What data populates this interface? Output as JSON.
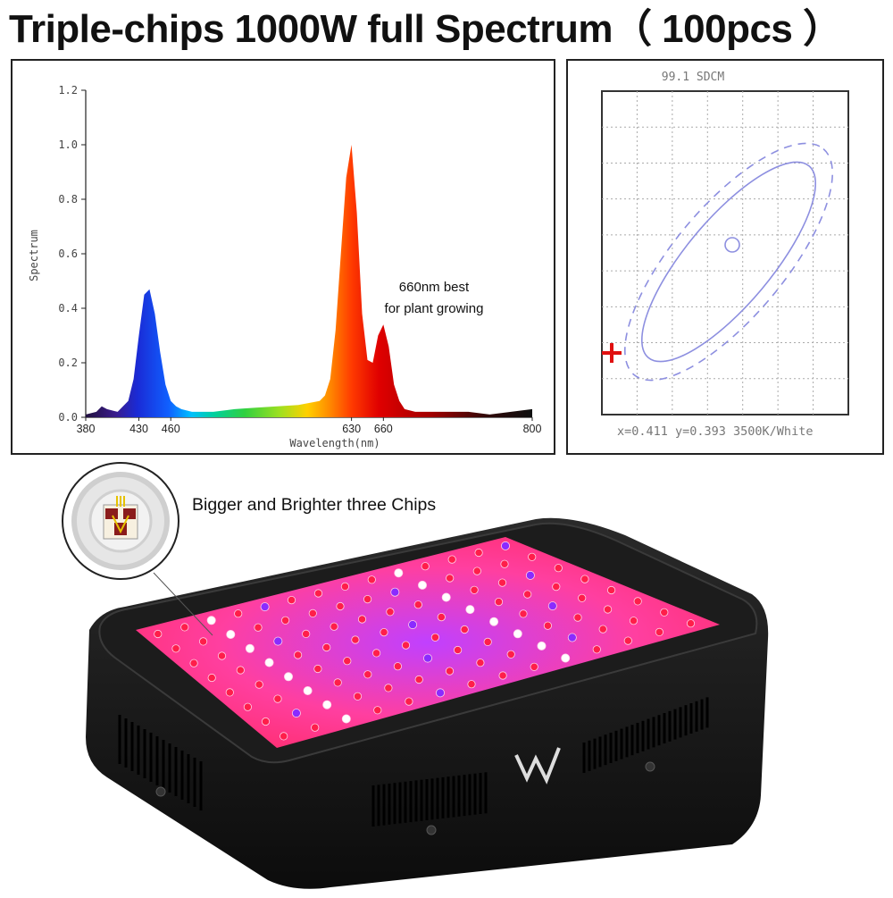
{
  "title": "Triple-chips 1000W full Spectrum（ 100pcs ）",
  "chart_data": [
    {
      "type": "area",
      "xlabel": "Wavelength(nm)",
      "ylabel": "Spectrum",
      "xlim": [
        380,
        800
      ],
      "ylim": [
        0,
        1.2
      ],
      "x_ticks": [
        380,
        430,
        460,
        630,
        660,
        800
      ],
      "y_ticks": [
        "0.0",
        "0.2",
        "0.4",
        "0.6",
        "0.8",
        "1.0",
        "1.2"
      ],
      "annotation": [
        "660nm best",
        "for plant growing"
      ],
      "series": [
        {
          "x": [
            380,
            390,
            395,
            400,
            410,
            420,
            425,
            430,
            435,
            440,
            445,
            450,
            455,
            460,
            465,
            470,
            480,
            490,
            500,
            520,
            540,
            560,
            580,
            600,
            605,
            610,
            615,
            620,
            625,
            630,
            635,
            640,
            645,
            650,
            655,
            660,
            665,
            670,
            675,
            680,
            690,
            700,
            720,
            740,
            760,
            780,
            800
          ],
          "y": [
            0.01,
            0.02,
            0.04,
            0.03,
            0.02,
            0.06,
            0.14,
            0.3,
            0.45,
            0.47,
            0.38,
            0.24,
            0.12,
            0.06,
            0.04,
            0.03,
            0.02,
            0.02,
            0.02,
            0.03,
            0.035,
            0.04,
            0.045,
            0.06,
            0.08,
            0.14,
            0.32,
            0.6,
            0.88,
            1.0,
            0.75,
            0.38,
            0.21,
            0.2,
            0.3,
            0.34,
            0.26,
            0.12,
            0.06,
            0.03,
            0.02,
            0.02,
            0.02,
            0.02,
            0.01,
            0.02,
            0.03
          ]
        }
      ]
    },
    {
      "type": "scatter",
      "title": "99.1 SDCM",
      "readout": "x=0.411 y=0.393 3500K/White"
    }
  ],
  "product": {
    "callout": "Bigger and Brighter three Chips",
    "colors": {
      "red_led": "#ff1e4a",
      "panel_glow": "#ff3fa0",
      "blue_led": "#8a2bff",
      "white_led": "#ffffff",
      "housing": "#161616"
    },
    "icons": [
      "triple-chip-icon",
      "brand-logo-icon"
    ]
  }
}
